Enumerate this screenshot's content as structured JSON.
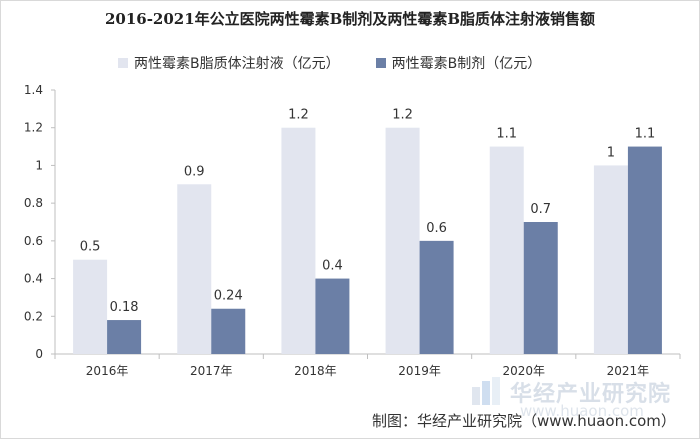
{
  "chart_data": {
    "type": "bar",
    "title": "2016-2021年公立医院两性霉素B制剂及两性霉素B脂质体注射液销售额",
    "categories": [
      "2016年",
      "2017年",
      "2018年",
      "2019年",
      "2020年",
      "2021年"
    ],
    "series": [
      {
        "name": "两性霉素B脂质体注射液（亿元）",
        "values": [
          0.5,
          0.9,
          1.2,
          1.2,
          1.1,
          1
        ],
        "labels": [
          "0.5",
          "0.9",
          "1.2",
          "1.2",
          "1.1",
          "1"
        ],
        "color": "#e2e5ef"
      },
      {
        "name": "两性霉素B制剂（亿元）",
        "values": [
          0.18,
          0.24,
          0.4,
          0.6,
          0.7,
          1.1
        ],
        "labels": [
          "0.18",
          "0.24",
          "0.4",
          "0.6",
          "0.7",
          "1.1"
        ],
        "color": "#6b7fa6"
      }
    ],
    "ylim": [
      0,
      1.4
    ],
    "yticks": [
      "0",
      "0.2",
      "0.4",
      "0.6",
      "0.8",
      "1",
      "1.2",
      "1.4"
    ],
    "grid": false,
    "legend_position": "top"
  },
  "watermark": {
    "text": "华经产业研究院",
    "url": "www.huaon.com"
  },
  "source": "制图：华经产业研究院（www.huaon.com）"
}
